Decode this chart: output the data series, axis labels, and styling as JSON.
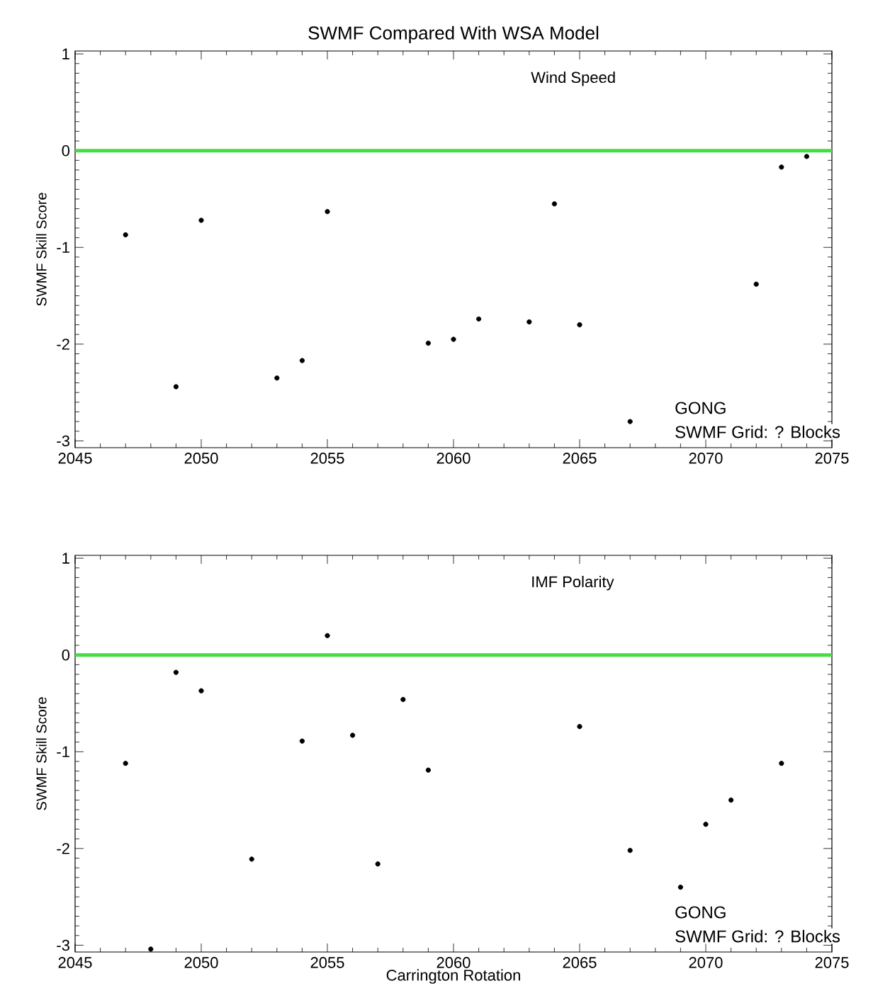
{
  "chart_data": [
    {
      "type": "scatter",
      "title": "SWMF Compared With WSA Model",
      "ylabel": "SWMF Skill Score",
      "marker": "circle",
      "grid": false,
      "x": [
        2047,
        2049,
        2050,
        2053,
        2054,
        2055,
        2059,
        2060,
        2061,
        2063,
        2064,
        2065,
        2067,
        2072,
        2073,
        2074
      ],
      "series": [
        {
          "color": "#000000",
          "values": [
            -0.87,
            -2.44,
            -0.72,
            -2.35,
            -2.17,
            -0.63,
            -1.99,
            -1.95,
            -1.74,
            -1.77,
            -0.55,
            -1.8,
            -2.8,
            -1.38,
            -0.17,
            -0.06
          ]
        }
      ],
      "xlim": [
        2045,
        2075
      ],
      "xticks": [
        2045,
        2050,
        2055,
        2060,
        2065,
        2070,
        2075
      ],
      "ylim": [
        -3.07,
        1.03
      ],
      "yticks": [
        -3,
        -2,
        -1,
        0,
        1
      ],
      "ref_lines": [
        {
          "axis": "y",
          "value": 0,
          "color": "#44dd44"
        }
      ],
      "annotations": [
        "Wind Speed",
        "GONG",
        "SWMF Grid: ? Blocks"
      ]
    },
    {
      "type": "scatter",
      "xlabel": "Carrington Rotation",
      "ylabel": "SWMF Skill Score",
      "marker": "circle",
      "grid": false,
      "x": [
        2047,
        2048,
        2049,
        2050,
        2052,
        2054,
        2055,
        2056,
        2057,
        2058,
        2059,
        2065,
        2067,
        2069,
        2070,
        2071,
        2073
      ],
      "series": [
        {
          "color": "#000000",
          "values": [
            -1.12,
            -3.04,
            -0.18,
            -0.37,
            -2.11,
            -0.89,
            0.2,
            -0.83,
            -2.16,
            -0.46,
            -1.19,
            -0.74,
            -2.02,
            -2.4,
            -1.75,
            -1.5,
            -1.12
          ]
        }
      ],
      "xlim": [
        2045,
        2075
      ],
      "xticks": [
        2045,
        2050,
        2055,
        2060,
        2065,
        2070,
        2075
      ],
      "ylim": [
        -3.07,
        1.03
      ],
      "yticks": [
        -3,
        -2,
        -1,
        0,
        1
      ],
      "ref_lines": [
        {
          "axis": "y",
          "value": 0,
          "color": "#44dd44"
        }
      ],
      "annotations": [
        "IMF Polarity",
        "GONG",
        "SWMF Grid: ? Blocks"
      ]
    }
  ]
}
